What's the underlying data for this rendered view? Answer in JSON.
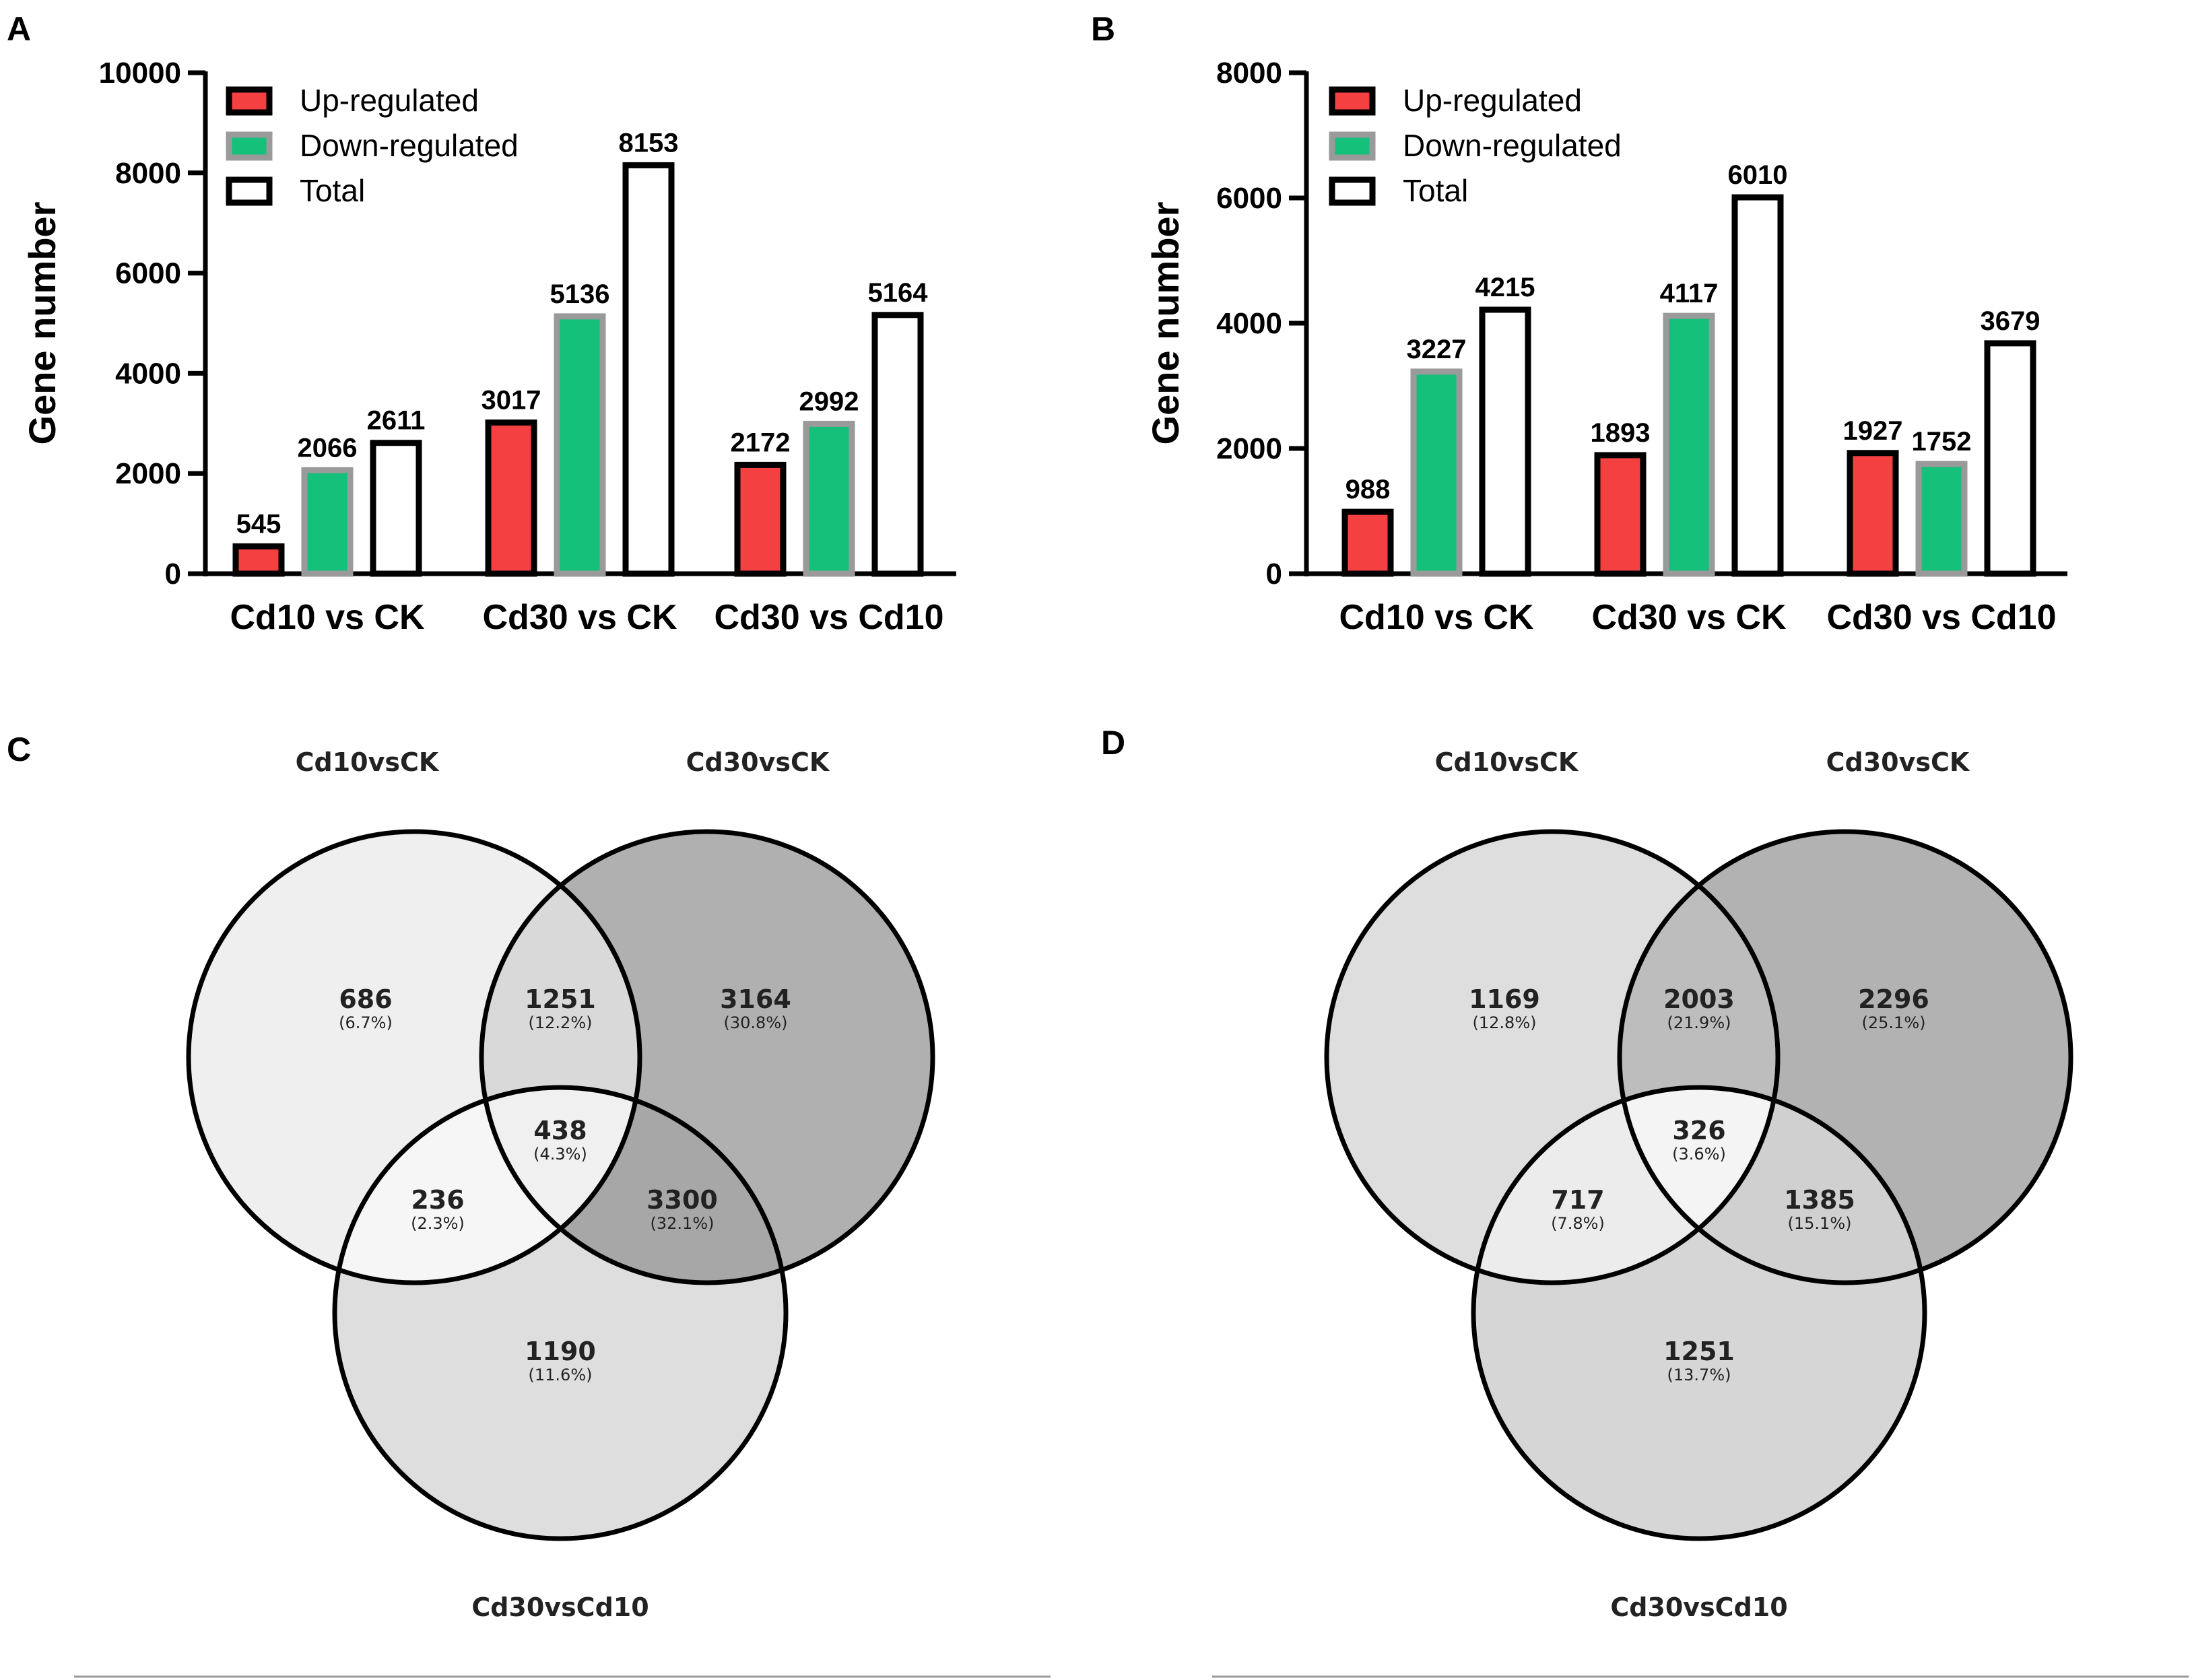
{
  "chart_data": [
    {
      "type": "bar",
      "panel": "A",
      "ylabel": "Gene number",
      "ylim": [
        0,
        10000
      ],
      "yticks": [
        0,
        2000,
        4000,
        6000,
        8000,
        10000
      ],
      "categories": [
        "Cd10 vs CK",
        "Cd30 vs CK",
        "Cd30 vs Cd10"
      ],
      "series": [
        {
          "name": "Up-regulated",
          "color": "#f44040",
          "values": [
            545,
            3017,
            2172
          ]
        },
        {
          "name": "Down-regulated",
          "color": "#14c07a",
          "values": [
            2066,
            5136,
            2992
          ]
        },
        {
          "name": "Total",
          "color": "#ffffff",
          "values": [
            2611,
            8153,
            5164
          ]
        }
      ],
      "legend": "top-left"
    },
    {
      "type": "bar",
      "panel": "B",
      "ylabel": "Gene number",
      "ylim": [
        0,
        8000
      ],
      "yticks": [
        0,
        2000,
        4000,
        6000,
        8000
      ],
      "categories": [
        "Cd10 vs CK",
        "Cd30 vs CK",
        "Cd30 vs Cd10"
      ],
      "series": [
        {
          "name": "Up-regulated",
          "color": "#f44040",
          "values": [
            988,
            1893,
            1927
          ]
        },
        {
          "name": "Down-regulated",
          "color": "#14c07a",
          "values": [
            3227,
            4117,
            1752
          ]
        },
        {
          "name": "Total",
          "color": "#ffffff",
          "values": [
            4215,
            6010,
            3679
          ]
        }
      ],
      "legend": "top-left"
    },
    {
      "type": "venn",
      "panel": "C",
      "sets": [
        "Cd10vsCK",
        "Cd30vsCK",
        "Cd30vsCd10"
      ],
      "regions": {
        "only_a": {
          "count": "686",
          "pct": "(6.7%)"
        },
        "a_b": {
          "count": "1251",
          "pct": "(12.2%)"
        },
        "only_b": {
          "count": "3164",
          "pct": "(30.8%)"
        },
        "a_b_c": {
          "count": "438",
          "pct": "(4.3%)"
        },
        "a_c": {
          "count": "236",
          "pct": "(2.3%)"
        },
        "b_c": {
          "count": "3300",
          "pct": "(32.1%)"
        },
        "only_c": {
          "count": "1190",
          "pct": "(11.6%)"
        }
      }
    },
    {
      "type": "venn",
      "panel": "D",
      "sets": [
        "Cd10vsCK",
        "Cd30vsCK",
        "Cd30vsCd10"
      ],
      "regions": {
        "only_a": {
          "count": "1169",
          "pct": "(12.8%)"
        },
        "a_b": {
          "count": "2003",
          "pct": "(21.9%)"
        },
        "only_b": {
          "count": "2296",
          "pct": "(25.1%)"
        },
        "a_b_c": {
          "count": "326",
          "pct": "(3.6%)"
        },
        "a_c": {
          "count": "717",
          "pct": "(7.8%)"
        },
        "b_c": {
          "count": "1385",
          "pct": "(15.1%)"
        },
        "only_c": {
          "count": "1251",
          "pct": "(13.7%)"
        }
      }
    }
  ],
  "panel_labels": [
    "A",
    "B",
    "C",
    "D"
  ]
}
